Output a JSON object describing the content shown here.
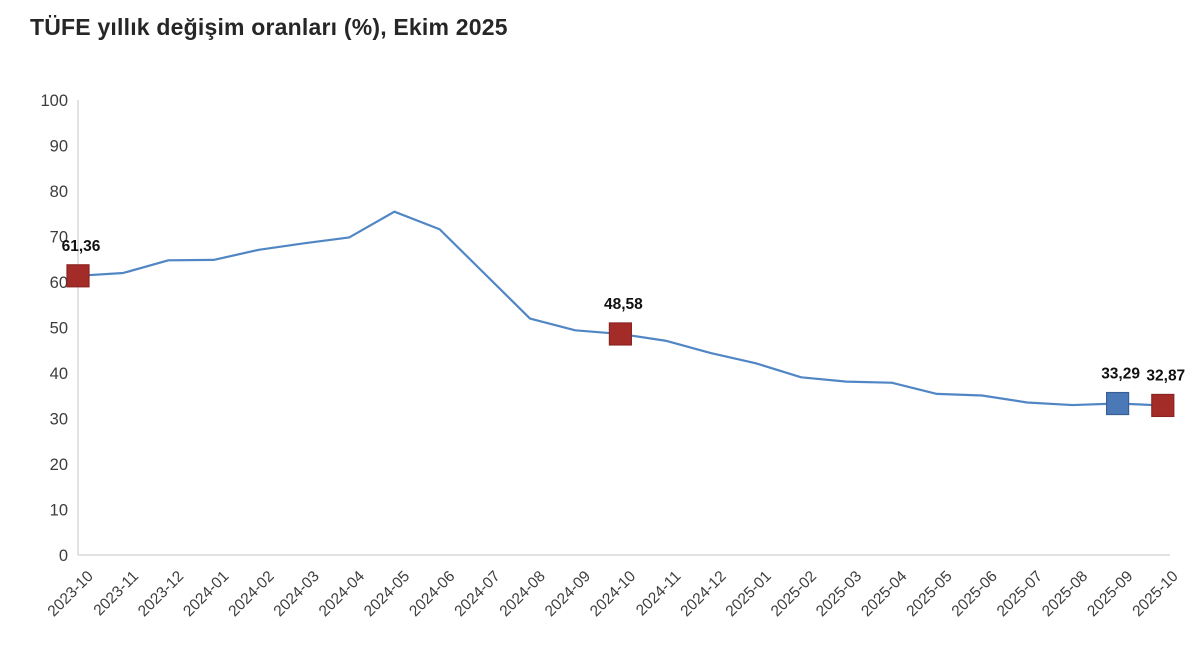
{
  "title": "TÜFE yıllık değişim oranları (%), Ekim 2025",
  "chart_data": {
    "type": "line",
    "title": "TÜFE yıllık değişim oranları (%), Ekim 2025",
    "xlabel": "",
    "ylabel": "",
    "ylim": [
      0,
      100
    ],
    "grid": false,
    "legend": false,
    "x": [
      "2023-10",
      "2023-11",
      "2023-12",
      "2024-01",
      "2024-02",
      "2024-03",
      "2024-04",
      "2024-05",
      "2024-06",
      "2024-07",
      "2024-08",
      "2024-09",
      "2024-10",
      "2024-11",
      "2024-12",
      "2025-01",
      "2025-02",
      "2025-03",
      "2025-04",
      "2025-05",
      "2025-06",
      "2025-07",
      "2025-08",
      "2025-09",
      "2025-10"
    ],
    "values": [
      61.36,
      61.98,
      64.77,
      64.86,
      67.07,
      68.5,
      69.8,
      75.45,
      71.6,
      61.78,
      51.97,
      49.38,
      48.58,
      47.09,
      44.38,
      42.12,
      39.05,
      38.1,
      37.86,
      35.41,
      35.05,
      33.52,
      32.95,
      33.29,
      32.87
    ],
    "y_ticks": [
      "0",
      "10",
      "20",
      "30",
      "40",
      "50",
      "60",
      "70",
      "80",
      "90",
      "100"
    ],
    "annotations": [
      {
        "x": "2023-10",
        "value": 61.36,
        "label": "61,36",
        "marker": "square",
        "color_key": "highlight_red"
      },
      {
        "x": "2024-10",
        "value": 48.58,
        "label": "48,58",
        "marker": "square",
        "color_key": "highlight_red"
      },
      {
        "x": "2025-09",
        "value": 33.29,
        "label": "33,29",
        "marker": "square",
        "color_key": "highlight_blue"
      },
      {
        "x": "2025-10",
        "value": 32.87,
        "label": "32,87",
        "marker": "square",
        "color_key": "highlight_red"
      }
    ],
    "colors": {
      "line": "#5186c5",
      "highlight_red": "#a32c28",
      "highlight_red_border": "#8b2420",
      "highlight_blue": "#4b79b7",
      "highlight_blue_border": "#3a5f94",
      "axis": "#d9d9d9",
      "tick_text": "#3d3d3d",
      "label_text": "#111111",
      "title_text": "#262626"
    }
  }
}
